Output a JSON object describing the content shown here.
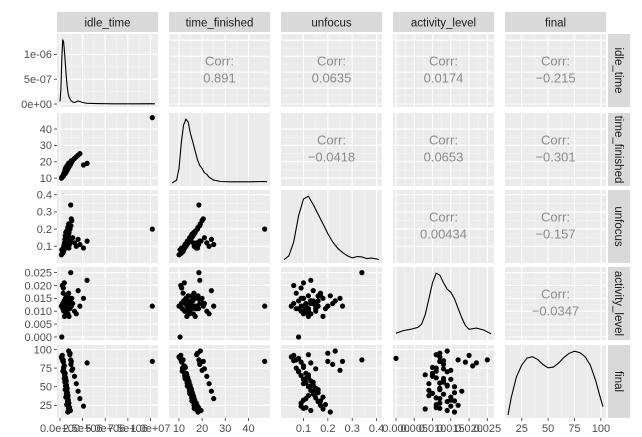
{
  "chart_data": {
    "type": "scatterplot_matrix",
    "variables": [
      "idle_time",
      "time_finished",
      "unfocus",
      "activity_level",
      "final"
    ],
    "corr_label": "Corr:",
    "correlations": [
      {
        "row": 0,
        "col": 1,
        "text": "0.891",
        "value": 0.891
      },
      {
        "row": 0,
        "col": 2,
        "text": "0.0635",
        "value": 0.0635
      },
      {
        "row": 0,
        "col": 3,
        "text": "0.0174",
        "value": 0.0174
      },
      {
        "row": 0,
        "col": 4,
        "text": "−0.215",
        "value": -0.215
      },
      {
        "row": 1,
        "col": 2,
        "text": "−0.0418",
        "value": -0.0418
      },
      {
        "row": 1,
        "col": 3,
        "text": "0.0653",
        "value": 0.0653
      },
      {
        "row": 1,
        "col": 4,
        "text": "−0.301",
        "value": -0.301
      },
      {
        "row": 2,
        "col": 3,
        "text": "0.00434",
        "value": 0.00434
      },
      {
        "row": 2,
        "col": 4,
        "text": "−0.157",
        "value": -0.157
      },
      {
        "row": 3,
        "col": 4,
        "text": "−0.0347",
        "value": -0.0347
      }
    ],
    "axes": {
      "idle_time": {
        "lim": [
          0,
          10500000
        ],
        "ticks": [
          0,
          2500000,
          5000000,
          7500000,
          10000000
        ],
        "tick_labels": [
          "0.0e+00",
          "2.5e+06",
          "5.0e+06",
          "7.5e+06",
          "1.0e+07"
        ]
      },
      "time_finished": {
        "lim": [
          7,
          48
        ],
        "ticks": [
          10,
          20,
          30,
          40
        ],
        "tick_labels": [
          "10",
          "20",
          "30",
          "40"
        ]
      },
      "unfocus": {
        "lim": [
          0.02,
          0.41
        ],
        "ticks": [
          0.1,
          0.2,
          0.3,
          0.4
        ],
        "tick_labels": [
          "0.1",
          "0.2",
          "0.3",
          "0.4"
        ]
      },
      "activity_level": {
        "lim": [
          0,
          0.026
        ],
        "ticks": [
          0,
          0.005,
          0.01,
          0.015,
          0.02,
          0.025
        ],
        "tick_labels": [
          "0.000",
          "0.005",
          "0.010",
          "0.015",
          "0.020",
          "0.025"
        ]
      },
      "final": {
        "lim": [
          12,
          102
        ],
        "ticks": [
          25,
          50,
          75,
          100
        ],
        "tick_labels": [
          "25",
          "50",
          "75",
          "100"
        ]
      }
    },
    "density_axis": {
      "row": "idle_time",
      "lim": [
        0,
        1.35e-06
      ],
      "ticks": [
        0,
        5e-07,
        1e-06
      ],
      "tick_labels": [
        "0e+00",
        "5e-07",
        "1e-06"
      ]
    },
    "densities": {
      "idle_time": {
        "x": [
          0,
          100000,
          200000,
          300000,
          400000,
          500000,
          600000,
          700000,
          800000,
          900000,
          1000000,
          1200000,
          1400000,
          1600000,
          1800000,
          2000000,
          2200000,
          2500000,
          3000000,
          4000000,
          6000000,
          8000000,
          10000000,
          10500000
        ],
        "y": [
          5e-08,
          3e-07,
          9e-07,
          1.3e-06,
          1.25e-06,
          1.05e-06,
          8e-07,
          5.5e-07,
          3.5e-07,
          2.2e-07,
          1.4e-07,
          7e-08,
          4e-08,
          3e-08,
          4.5e-08,
          6e-08,
          5e-08,
          3e-08,
          1.5e-08,
          8e-09,
          5e-09,
          5e-09,
          6e-09,
          5e-09
        ]
      },
      "time_finished": {
        "x": [
          7,
          9,
          10,
          11,
          12,
          13,
          14,
          15,
          16,
          17,
          18,
          19,
          20,
          21,
          22,
          23,
          25,
          28,
          32,
          40,
          47,
          48
        ],
        "y": [
          0,
          0.01,
          0.05,
          0.14,
          0.2,
          0.22,
          0.21,
          0.17,
          0.14,
          0.11,
          0.08,
          0.06,
          0.05,
          0.035,
          0.03,
          0.02,
          0.01,
          0.005,
          0.004,
          0.004,
          0.005,
          0.004
        ]
      },
      "unfocus": {
        "x": [
          0.02,
          0.04,
          0.06,
          0.08,
          0.1,
          0.12,
          0.14,
          0.16,
          0.18,
          0.2,
          0.22,
          0.24,
          0.26,
          0.28,
          0.3,
          0.32,
          0.34,
          0.36,
          0.38,
          0.4,
          0.41
        ],
        "y": [
          0.02,
          0.3,
          1.3,
          3.2,
          4.4,
          4.6,
          4.0,
          3.3,
          2.6,
          1.9,
          1.3,
          0.85,
          0.55,
          0.3,
          0.15,
          0.25,
          0.22,
          0.1,
          0.14,
          0.08,
          0.03
        ]
      },
      "activity_level": {
        "x": [
          0,
          0.002,
          0.004,
          0.006,
          0.007,
          0.008,
          0.009,
          0.01,
          0.011,
          0.012,
          0.013,
          0.014,
          0.015,
          0.016,
          0.017,
          0.018,
          0.019,
          0.02,
          0.022,
          0.024,
          0.026
        ],
        "y": [
          0.06,
          0.1,
          0.12,
          0.15,
          0.2,
          0.35,
          0.6,
          0.85,
          1.0,
          0.97,
          0.85,
          0.75,
          0.7,
          0.6,
          0.45,
          0.3,
          0.18,
          0.12,
          0.14,
          0.11,
          0.05
        ]
      },
      "final": {
        "x": [
          12,
          15,
          20,
          25,
          30,
          35,
          40,
          45,
          50,
          55,
          60,
          65,
          70,
          75,
          80,
          85,
          90,
          95,
          100,
          102
        ],
        "y": [
          0.0,
          0.0025,
          0.0055,
          0.0072,
          0.0082,
          0.0084,
          0.008,
          0.0073,
          0.0068,
          0.0069,
          0.0075,
          0.0083,
          0.0089,
          0.0092,
          0.009,
          0.0084,
          0.0072,
          0.005,
          0.0022,
          0.0012
        ]
      }
    },
    "points": {
      "idle_time": [
        150000,
        300000,
        400000,
        450000,
        520000,
        600000,
        650000,
        700000,
        750000,
        800000,
        850000,
        900000,
        950000,
        1000000,
        1100000,
        1200000,
        1300000,
        200000,
        380000,
        480000,
        560000,
        620000,
        680000,
        720000,
        780000,
        820000,
        880000,
        920000,
        980000,
        1050000,
        1150000,
        250000,
        350000,
        420000,
        500000,
        540000,
        580000,
        640000,
        740000,
        860000,
        960000,
        1250000,
        1400000,
        1600000,
        1800000,
        2000000,
        2200000,
        2600000,
        3000000,
        320000,
        460000,
        610000,
        710000,
        830000,
        930000,
        1080000,
        1180000,
        10200000
      ],
      "time_finished": [
        10,
        11,
        11.5,
        12,
        12.5,
        13,
        13.5,
        14,
        14.5,
        15,
        15.5,
        16,
        16.5,
        17,
        18,
        19,
        20,
        10.5,
        11.2,
        12.3,
        13.2,
        13.8,
        14.2,
        14.8,
        15.2,
        15.8,
        16.2,
        16.8,
        17.5,
        18.5,
        19.5,
        10.8,
        11.8,
        12.8,
        13.4,
        14.4,
        15.4,
        16.4,
        17.2,
        18.2,
        19.2,
        20.5,
        21,
        22,
        23,
        24,
        25,
        18,
        19,
        11.4,
        12.6,
        13.6,
        14.6,
        15.6,
        16.6,
        17.6,
        18.6,
        47
      ],
      "unfocus": [
        0.05,
        0.06,
        0.07,
        0.08,
        0.09,
        0.1,
        0.11,
        0.12,
        0.13,
        0.14,
        0.15,
        0.16,
        0.17,
        0.18,
        0.2,
        0.22,
        0.25,
        0.08,
        0.09,
        0.1,
        0.11,
        0.12,
        0.13,
        0.14,
        0.15,
        0.16,
        0.12,
        0.1,
        0.09,
        0.11,
        0.13,
        0.06,
        0.07,
        0.1,
        0.12,
        0.14,
        0.16,
        0.18,
        0.19,
        0.21,
        0.23,
        0.26,
        0.15,
        0.12,
        0.1,
        0.14,
        0.11,
        0.09,
        0.13,
        0.08,
        0.11,
        0.13,
        0.15,
        0.17,
        0.1,
        0.12,
        0.34,
        0.2
      ],
      "activity_level": [
        0.012,
        0.013,
        0.011,
        0.014,
        0.01,
        0.015,
        0.012,
        0.016,
        0.009,
        0.013,
        0.011,
        0.014,
        0.017,
        0.008,
        0.012,
        0.013,
        0.015,
        0.0,
        0.019,
        0.021,
        0.01,
        0.011,
        0.013,
        0.014,
        0.012,
        0.016,
        0.009,
        0.015,
        0.012,
        0.011,
        0.014,
        0.02,
        0.017,
        0.01,
        0.008,
        0.013,
        0.012,
        0.015,
        0.011,
        0.016,
        0.014,
        0.012,
        0.013,
        0.01,
        0.009,
        0.018,
        0.012,
        0.015,
        0.022,
        0.011,
        0.013,
        0.014,
        0.01,
        0.016,
        0.012,
        0.011,
        0.025,
        0.012
      ],
      "final": [
        90,
        85,
        75,
        70,
        65,
        60,
        55,
        50,
        45,
        40,
        35,
        30,
        25,
        20,
        95,
        80,
        72,
        88,
        83,
        78,
        68,
        62,
        58,
        52,
        48,
        42,
        38,
        32,
        28,
        22,
        18,
        92,
        86,
        76,
        66,
        56,
        46,
        36,
        26,
        16,
        98,
        84,
        74,
        64,
        54,
        44,
        34,
        24,
        82,
        71,
        61,
        51,
        41,
        31,
        21,
        93,
        86,
        84
      ]
    }
  }
}
